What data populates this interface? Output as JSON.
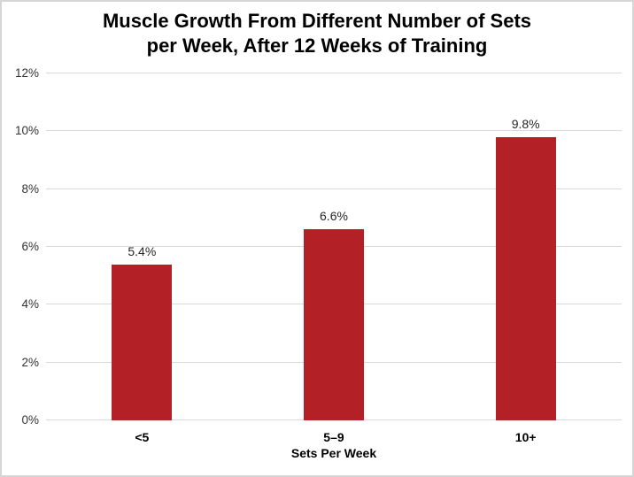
{
  "chart_data": {
    "type": "bar",
    "title": "Muscle Growth From Different Number of Sets\nper Week, After 12 Weeks of Training",
    "categories": [
      "<5",
      "5–9",
      "10+"
    ],
    "values": [
      5.4,
      6.6,
      9.8
    ],
    "value_labels": [
      "5.4%",
      "6.6%",
      "9.8%"
    ],
    "xlabel": "Sets Per Week",
    "ylabel": "",
    "ylim": [
      0,
      12
    ],
    "ytick_labels": [
      "0%",
      "2%",
      "4%",
      "6%",
      "8%",
      "10%",
      "12%"
    ],
    "ytick_values": [
      0,
      2,
      4,
      6,
      8,
      10,
      12
    ],
    "grid": "horizontal",
    "legend": "none",
    "bar_color": "#b32025",
    "grid_color": "#d9d9d9",
    "title_color": "#000000",
    "background": "#ffffff"
  }
}
